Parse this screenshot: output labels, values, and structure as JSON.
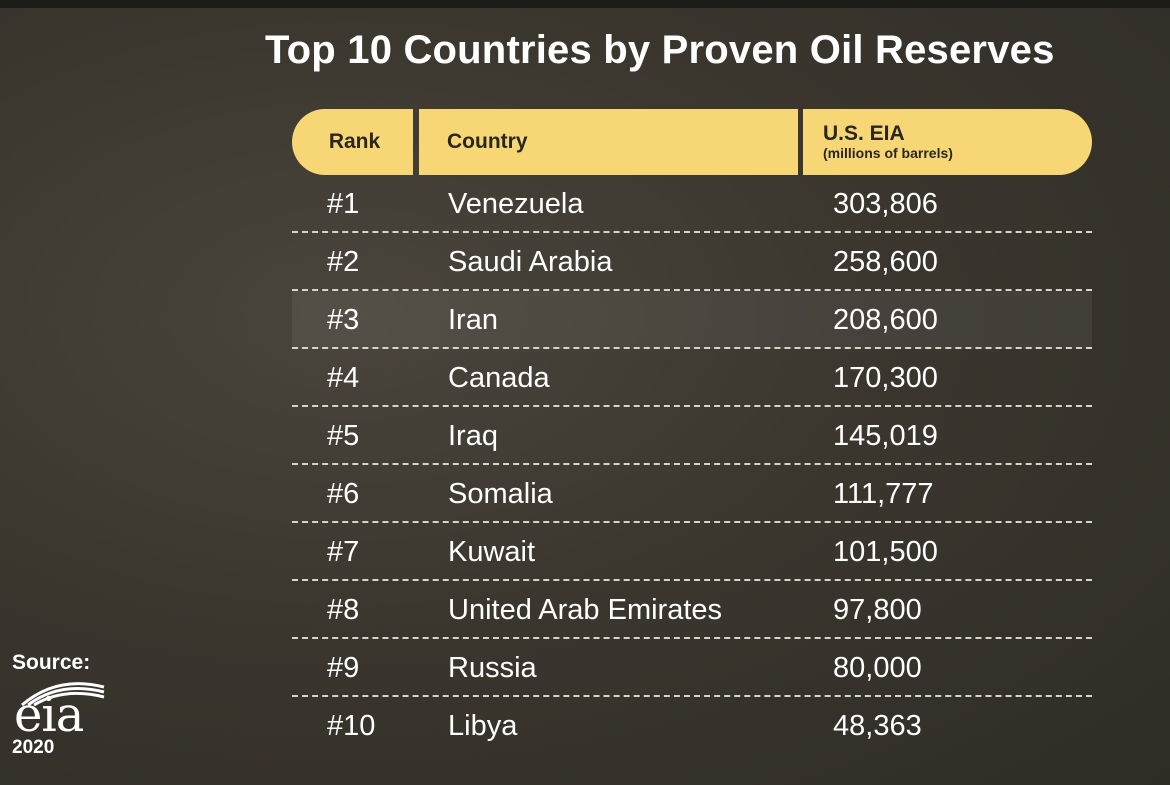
{
  "title": "Top 10 Countries by Proven Oil Reserves",
  "chart_data": {
    "type": "table",
    "title": "Top 10 Countries by Proven Oil Reserves",
    "columns": [
      "Rank",
      "Country",
      "U.S. EIA",
      "(millions of barrels)"
    ],
    "rows": [
      {
        "rank": "#1",
        "country": "Venezuela",
        "value": "303,806"
      },
      {
        "rank": "#2",
        "country": "Saudi Arabia",
        "value": "258,600"
      },
      {
        "rank": "#3",
        "country": "Iran",
        "value": "208,600"
      },
      {
        "rank": "#4",
        "country": "Canada",
        "value": "170,300"
      },
      {
        "rank": "#5",
        "country": "Iraq",
        "value": "145,019"
      },
      {
        "rank": "#6",
        "country": "Somalia",
        "value": "111,777"
      },
      {
        "rank": "#7",
        "country": "Kuwait",
        "value": "101,500"
      },
      {
        "rank": "#8",
        "country": "United Arab Emirates",
        "value": "97,800"
      },
      {
        "rank": "#9",
        "country": "Russia",
        "value": "80,000"
      },
      {
        "rank": "#10",
        "country": "Libya",
        "value": "48,363"
      }
    ]
  },
  "header": {
    "rank": "Rank",
    "country": "Country",
    "value_line1": "U.S. EIA",
    "value_line2": "(millions of barrels)"
  },
  "source": {
    "label": "Source:",
    "logo_text": "eia",
    "year": "2020"
  },
  "colors": {
    "header_bg": "#f7d775",
    "header_text": "#2a2620",
    "background": "#3a362f",
    "row_text": "#ffffff",
    "divider": "#d9d4c8"
  }
}
